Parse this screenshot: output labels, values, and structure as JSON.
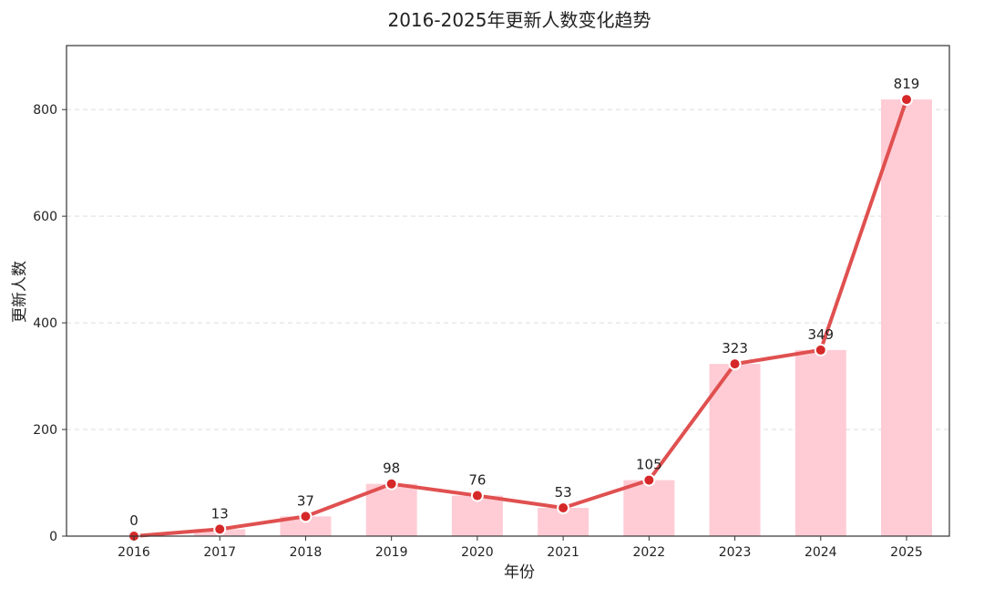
{
  "chart_data": {
    "type": "bar",
    "title": "2016-2025年更新人数变化趋势",
    "xlabel": "年份",
    "ylabel": "更新人数",
    "categories": [
      "2016",
      "2017",
      "2018",
      "2019",
      "2020",
      "2021",
      "2022",
      "2023",
      "2024",
      "2025"
    ],
    "values": [
      0,
      13,
      37,
      98,
      76,
      53,
      105,
      323,
      349,
      819
    ],
    "overlay": "line",
    "data_labels": [
      "0",
      "13",
      "37",
      "98",
      "76",
      "53",
      "105",
      "323",
      "349",
      "819"
    ],
    "ylim": [
      0,
      920
    ],
    "yticks": [
      0,
      200,
      400,
      600,
      800
    ],
    "ytick_labels": [
      "0",
      "200",
      "400",
      "600",
      "800"
    ],
    "grid": "horizontal dashed",
    "legend": "none",
    "colors": {
      "bar": "#ffccd5",
      "line": "#e05050",
      "marker": "#d62828",
      "marker_edge": "#ffffff",
      "grid": "#dddddd",
      "axis": "#333333"
    }
  }
}
